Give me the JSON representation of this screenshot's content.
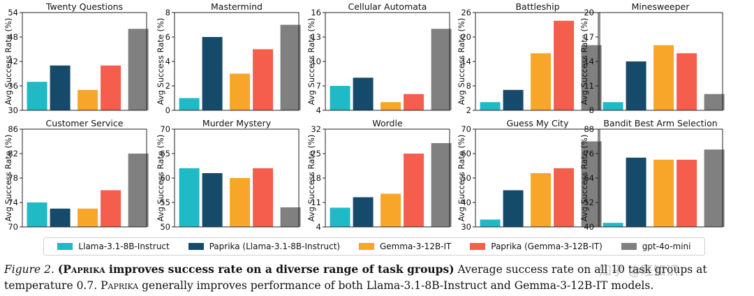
{
  "chart_data": {
    "type": "bar",
    "colors": [
      "#20b9c6",
      "#164a6b",
      "#f7a629",
      "#f55d4c",
      "#808080"
    ],
    "series_names": [
      "Llama-3.1-8B-Instruct",
      "Paprika (Llama-3.1-8B-Instruct)",
      "Gemma-3-12B-IT",
      "Paprika (Gemma-3-12B-IT)",
      "gpt-4o-mini"
    ],
    "ylabel": "Avg Success Rate (%)",
    "subplots": [
      {
        "title": "Twenty Questions",
        "values": [
          37,
          41,
          35,
          41,
          50
        ],
        "ylim": [
          30,
          54
        ],
        "yticks": [
          30,
          36,
          42,
          48,
          54
        ]
      },
      {
        "title": "Mastermind",
        "values": [
          1,
          6,
          3,
          5,
          7
        ],
        "ylim": [
          0,
          8
        ],
        "yticks": [
          0,
          2,
          4,
          6,
          8
        ]
      },
      {
        "title": "Cellular Automata",
        "values": [
          7,
          8,
          5,
          6,
          14
        ],
        "ylim": [
          4,
          16
        ],
        "yticks": [
          4,
          7,
          10,
          13,
          16
        ]
      },
      {
        "title": "Battleship",
        "values": [
          4,
          7,
          16,
          24,
          18
        ],
        "ylim": [
          2,
          26
        ],
        "yticks": [
          2,
          8,
          14,
          20,
          26
        ]
      },
      {
        "title": "Minesweeper",
        "values": [
          9,
          14,
          16,
          15,
          10
        ],
        "ylim": [
          8,
          20
        ],
        "yticks": [
          8,
          11,
          14,
          17,
          20
        ]
      },
      {
        "title": "Customer Service",
        "values": [
          74,
          73,
          73,
          76,
          82
        ],
        "ylim": [
          70,
          86
        ],
        "yticks": [
          70,
          74,
          78,
          82,
          86
        ]
      },
      {
        "title": "Murder Mystery",
        "values": [
          62,
          61,
          60,
          62,
          54
        ],
        "ylim": [
          50,
          70
        ],
        "yticks": [
          50,
          55,
          60,
          65,
          70
        ]
      },
      {
        "title": "Wordle",
        "values": [
          9.5,
          12.5,
          13.5,
          25,
          28
        ],
        "ylim": [
          4,
          32
        ],
        "yticks": [
          4,
          11,
          18,
          25,
          32
        ]
      },
      {
        "title": "Guess My City",
        "values": [
          33,
          45,
          52,
          54,
          65
        ],
        "ylim": [
          30,
          70
        ],
        "yticks": [
          30,
          40,
          50,
          60,
          70
        ]
      },
      {
        "title": "Bandit Best Arm Selection",
        "values": [
          42,
          74,
          73,
          73,
          78
        ],
        "ylim": [
          40,
          88
        ],
        "yticks": [
          40,
          52,
          64,
          76,
          88
        ]
      }
    ]
  },
  "legend": {
    "items": [
      {
        "label": "Llama-3.1-8B-Instruct",
        "color": "#20b9c6"
      },
      {
        "label": "Paprika (Llama-3.1-8B-Instruct)",
        "color": "#164a6b"
      },
      {
        "label": "Gemma-3-12B-IT",
        "color": "#f7a629"
      },
      {
        "label": "Paprika (Gemma-3-12B-IT)",
        "color": "#f55d4c"
      },
      {
        "label": "gpt-4o-mini",
        "color": "#808080"
      }
    ]
  },
  "caption": {
    "figure_label": "Figure 2.",
    "bold_open": "(",
    "bold_name": "Paprika",
    "bold_rest": " improves success rate on a diverse range of task groups)",
    "body": " Average success rate on all 10 task groups at temperature 0.7. ",
    "name2": "Paprika",
    "body2": " generally improves performance of both Llama-3.1-8B-Instruct and Gemma-3-12B-IT models."
  },
  "watermark": "知乎 @旺知识"
}
